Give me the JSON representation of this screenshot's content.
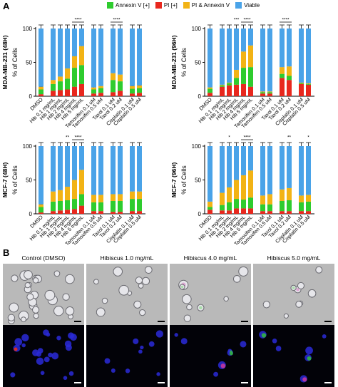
{
  "panel_labels": {
    "a": "A",
    "b": "B"
  },
  "legend": [
    {
      "label": "Annexin V [+]",
      "color": "#2ecc2e"
    },
    {
      "label": "PI [+]",
      "color": "#e8281e"
    },
    {
      "label": "PI & Annexin V",
      "color": "#f2b315"
    },
    {
      "label": "Viable",
      "color": "#4aa3e8"
    }
  ],
  "colors": {
    "annexin": "#2ecc2e",
    "pi": "#e8281e",
    "both": "#f2b315",
    "viable": "#4aa3e8"
  },
  "chart_data": [
    {
      "type": "bar",
      "stacked": true,
      "ylabel_left": "MDA-MB-231 (48H)",
      "ylabel": "% of Cells",
      "ylim": [
        0,
        100
      ],
      "yticks": [
        0,
        50,
        100
      ],
      "categories": [
        "DMSO",
        "Hib 0.1 mg/mL",
        "Hib 1 mg/mL",
        "Hib 2 mg/mL",
        "Hib 4 mg/mL",
        "Hib 5 mg/mL",
        "Tamoxifen 0.1 uM",
        "Tamoxifen 0.5 uM",
        "Taxol 0.1 uM",
        "Taxol 0.2 uM",
        "Cisplatin 0.1 uM",
        "Cisplatin 0.5 uM"
      ],
      "groups": [
        [
          0
        ],
        [
          1,
          2,
          3,
          4,
          5
        ],
        [
          6,
          7
        ],
        [
          8,
          9
        ],
        [
          10,
          11
        ]
      ],
      "series": [
        {
          "name": "PI [+]",
          "values": [
            3,
            8,
            9,
            10,
            14,
            18,
            4,
            5,
            6,
            8,
            4,
            5
          ]
        },
        {
          "name": "Annexin V [+]",
          "values": [
            7,
            10,
            13,
            16,
            28,
            28,
            6,
            7,
            18,
            14,
            7,
            7
          ]
        },
        {
          "name": "PI & Annexin V",
          "values": [
            4,
            6,
            7,
            15,
            17,
            28,
            3,
            3,
            10,
            10,
            4,
            4
          ]
        },
        {
          "name": "Viable",
          "values": [
            86,
            76,
            71,
            59,
            41,
            26,
            87,
            85,
            66,
            68,
            85,
            84
          ]
        }
      ],
      "significance": [
        {
          "from": 4,
          "to": 5,
          "label": "****"
        },
        {
          "from": 8,
          "to": 9,
          "label": "****"
        }
      ]
    },
    {
      "type": "bar",
      "stacked": true,
      "ylabel_left": "MDA-MB-231 (96H)",
      "ylabel": "% of Cells",
      "ylim": [
        0,
        100
      ],
      "yticks": [
        0,
        50,
        100
      ],
      "categories": [
        "DMSO",
        "Hib 0.1 mg/mL",
        "Hib 1 mg/mL",
        "Hib 2 mg/mL",
        "Hib 4 mg/mL",
        "Hib 5 mg/mL",
        "Tamoxifen 0.1 uM",
        "Tamoxifen 0.5 uM",
        "Taxol 0.1 uM",
        "Taxol 0.2 uM",
        "Cisplatin 0.1 uM",
        "Cisplatin 0.5 uM"
      ],
      "groups": [
        [
          0
        ],
        [
          1,
          2,
          3,
          4,
          5
        ],
        [
          6,
          7
        ],
        [
          8,
          9
        ],
        [
          10,
          11
        ]
      ],
      "series": [
        {
          "name": "PI [+]",
          "values": [
            5,
            14,
            16,
            17,
            18,
            14,
            4,
            4,
            27,
            24,
            18,
            17
          ]
        },
        {
          "name": "Annexin V [+]",
          "values": [
            6,
            2,
            3,
            10,
            24,
            29,
            2,
            2,
            6,
            6,
            1,
            1
          ]
        },
        {
          "name": "PI & Annexin V",
          "values": [
            2,
            1,
            1,
            12,
            24,
            32,
            1,
            1,
            10,
            14,
            1,
            1
          ]
        },
        {
          "name": "Viable",
          "values": [
            87,
            83,
            80,
            61,
            34,
            25,
            93,
            93,
            57,
            56,
            80,
            81
          ]
        }
      ],
      "significance": [
        {
          "from": 3,
          "to": 3,
          "label": "***"
        },
        {
          "from": 4,
          "to": 5,
          "label": "****"
        },
        {
          "from": 8,
          "to": 9,
          "label": "****"
        }
      ]
    },
    {
      "type": "bar",
      "stacked": true,
      "ylabel_left": "MCF-7 (48H)",
      "ylabel": "% of Cells",
      "ylim": [
        0,
        100
      ],
      "yticks": [
        0,
        50,
        100
      ],
      "categories": [
        "DMSO",
        "Hib 0.1 mg/mL",
        "Hib 1 mg/mL",
        "Hib 2 mg/mL",
        "Hib 4 mg/mL",
        "Hib 5 mg/mL",
        "Tamoxifen 0.1 uM",
        "Tamoxifen 0.5 uM",
        "Taxol 0.1 uM",
        "Taxol 0.2 uM",
        "Cisplatin 0.1 uM",
        "Cisplatin 0.5 uM"
      ],
      "groups": [
        [
          0
        ],
        [
          1,
          2,
          3,
          4,
          5
        ],
        [
          6,
          7
        ],
        [
          8,
          9
        ],
        [
          10,
          11
        ]
      ],
      "series": [
        {
          "name": "PI [+]",
          "values": [
            2,
            4,
            5,
            6,
            7,
            12,
            4,
            4,
            3,
            3,
            4,
            4
          ]
        },
        {
          "name": "Annexin V [+]",
          "values": [
            8,
            14,
            14,
            14,
            15,
            17,
            13,
            13,
            16,
            16,
            18,
            18
          ]
        },
        {
          "name": "PI & Annexin V",
          "values": [
            4,
            15,
            16,
            20,
            28,
            36,
            11,
            11,
            10,
            10,
            11,
            11
          ]
        },
        {
          "name": "Viable",
          "values": [
            86,
            67,
            65,
            60,
            50,
            35,
            72,
            72,
            71,
            71,
            67,
            67
          ]
        }
      ],
      "significance": [
        {
          "from": 3,
          "to": 3,
          "label": "**"
        },
        {
          "from": 4,
          "to": 5,
          "label": "****"
        }
      ]
    },
    {
      "type": "bar",
      "stacked": true,
      "ylabel_left": "MCF-7 (96H)",
      "ylabel": "% of Cells",
      "ylim": [
        0,
        100
      ],
      "yticks": [
        0,
        50,
        100
      ],
      "categories": [
        "DMSO",
        "Hib 0.1 mg/mL",
        "Hib 1 mg/mL",
        "Hib 2 mg/mL",
        "Hib 4 mg/mL",
        "Hib 5 mg/mL",
        "Tamoxifen 0.1 uM",
        "Tamoxifen 0.5 uM",
        "Taxol 0.1 uM",
        "Taxol 0.2 uM",
        "Cisplatin 0.1 uM",
        "Cisplatin 0.5 uM"
      ],
      "groups": [
        [
          0
        ],
        [
          1,
          2,
          3,
          4,
          5
        ],
        [
          6,
          7
        ],
        [
          8,
          9
        ],
        [
          10,
          11
        ]
      ],
      "series": [
        {
          "name": "PI [+]",
          "values": [
            6,
            5,
            5,
            8,
            8,
            8,
            4,
            4,
            4,
            4,
            4,
            4
          ]
        },
        {
          "name": "Annexin V [+]",
          "values": [
            4,
            8,
            12,
            14,
            13,
            16,
            10,
            10,
            15,
            16,
            13,
            14
          ]
        },
        {
          "name": "PI & Annexin V",
          "values": [
            8,
            18,
            22,
            28,
            36,
            40,
            13,
            15,
            17,
            18,
            10,
            10
          ]
        },
        {
          "name": "Viable",
          "values": [
            82,
            69,
            61,
            50,
            43,
            36,
            73,
            71,
            64,
            62,
            73,
            72
          ]
        }
      ],
      "significance": [
        {
          "from": 2,
          "to": 2,
          "label": "*"
        },
        {
          "from": 4,
          "to": 5,
          "label": "****"
        },
        {
          "from": 9,
          "to": 9,
          "label": "**"
        },
        {
          "from": 11,
          "to": 11,
          "label": "*"
        }
      ]
    }
  ],
  "micrographs": [
    {
      "label": "Control (DMSO)"
    },
    {
      "label": "Hibiscus 1.0 mg/mL"
    },
    {
      "label": "Hibiscus 4.0 mg/mL"
    },
    {
      "label": "Hibiscus 5.0 mg/mL"
    }
  ]
}
